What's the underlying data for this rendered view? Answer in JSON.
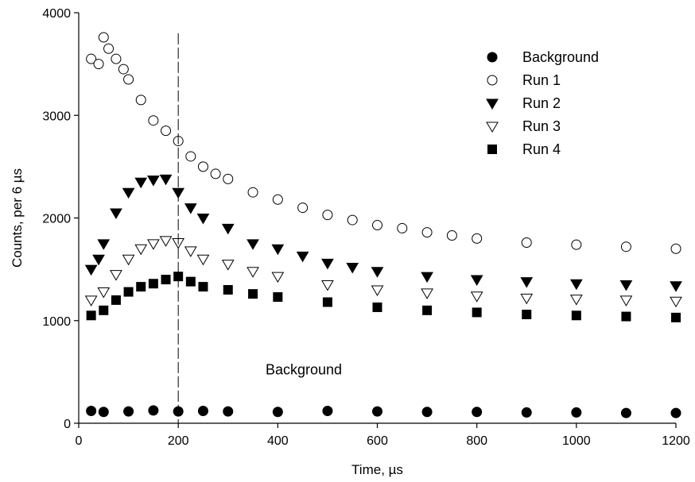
{
  "chart_data": {
    "type": "scatter",
    "title": "",
    "xlabel": "Time, µs",
    "ylabel": "Counts, per 6 µs",
    "xlim": [
      0,
      1200
    ],
    "ylim": [
      0,
      4000
    ],
    "x_ticks": [
      "0",
      "200",
      "400",
      "600",
      "800",
      "1000",
      "1200"
    ],
    "y_ticks": [
      "0",
      "1000",
      "2000",
      "3000",
      "4000"
    ],
    "grid": false,
    "legend_position": "top-right",
    "reference_line": {
      "x": 200,
      "style": "dashed"
    },
    "annotation": {
      "text": "Background",
      "x": 580,
      "y": 260
    },
    "series": [
      {
        "name": "Background",
        "marker": "filled-circle",
        "points": [
          [
            25,
            120
          ],
          [
            50,
            110
          ],
          [
            100,
            115
          ],
          [
            150,
            125
          ],
          [
            200,
            115
          ],
          [
            250,
            120
          ],
          [
            300,
            115
          ],
          [
            400,
            110
          ],
          [
            500,
            120
          ],
          [
            600,
            115
          ],
          [
            700,
            110
          ],
          [
            800,
            110
          ],
          [
            900,
            105
          ],
          [
            1000,
            105
          ],
          [
            1100,
            100
          ],
          [
            1200,
            100
          ]
        ]
      },
      {
        "name": "Run 1",
        "marker": "open-circle",
        "points": [
          [
            25,
            3550
          ],
          [
            40,
            3500
          ],
          [
            50,
            3760
          ],
          [
            60,
            3650
          ],
          [
            75,
            3550
          ],
          [
            90,
            3450
          ],
          [
            100,
            3350
          ],
          [
            125,
            3150
          ],
          [
            150,
            2950
          ],
          [
            175,
            2850
          ],
          [
            200,
            2750
          ],
          [
            225,
            2600
          ],
          [
            250,
            2500
          ],
          [
            275,
            2430
          ],
          [
            300,
            2380
          ],
          [
            350,
            2250
          ],
          [
            400,
            2180
          ],
          [
            450,
            2100
          ],
          [
            500,
            2030
          ],
          [
            550,
            1980
          ],
          [
            600,
            1930
          ],
          [
            650,
            1900
          ],
          [
            700,
            1860
          ],
          [
            750,
            1830
          ],
          [
            800,
            1800
          ],
          [
            900,
            1760
          ],
          [
            1000,
            1740
          ],
          [
            1100,
            1720
          ],
          [
            1200,
            1700
          ]
        ]
      },
      {
        "name": "Run 2",
        "marker": "filled-triangle-down",
        "points": [
          [
            25,
            1500
          ],
          [
            40,
            1600
          ],
          [
            50,
            1750
          ],
          [
            75,
            2050
          ],
          [
            100,
            2250
          ],
          [
            125,
            2350
          ],
          [
            150,
            2370
          ],
          [
            175,
            2380
          ],
          [
            200,
            2250
          ],
          [
            225,
            2100
          ],
          [
            250,
            2000
          ],
          [
            300,
            1900
          ],
          [
            350,
            1750
          ],
          [
            400,
            1700
          ],
          [
            450,
            1630
          ],
          [
            500,
            1560
          ],
          [
            550,
            1520
          ],
          [
            600,
            1480
          ],
          [
            700,
            1430
          ],
          [
            800,
            1400
          ],
          [
            900,
            1380
          ],
          [
            1000,
            1360
          ],
          [
            1100,
            1350
          ],
          [
            1200,
            1340
          ]
        ]
      },
      {
        "name": "Run 3",
        "marker": "open-triangle-down",
        "points": [
          [
            25,
            1200
          ],
          [
            50,
            1280
          ],
          [
            75,
            1450
          ],
          [
            100,
            1600
          ],
          [
            125,
            1700
          ],
          [
            150,
            1750
          ],
          [
            175,
            1780
          ],
          [
            200,
            1760
          ],
          [
            225,
            1680
          ],
          [
            250,
            1600
          ],
          [
            300,
            1550
          ],
          [
            350,
            1480
          ],
          [
            400,
            1430
          ],
          [
            500,
            1350
          ],
          [
            600,
            1300
          ],
          [
            700,
            1270
          ],
          [
            800,
            1240
          ],
          [
            900,
            1220
          ],
          [
            1000,
            1210
          ],
          [
            1100,
            1200
          ],
          [
            1200,
            1190
          ]
        ]
      },
      {
        "name": "Run 4",
        "marker": "filled-square",
        "points": [
          [
            25,
            1050
          ],
          [
            50,
            1100
          ],
          [
            75,
            1200
          ],
          [
            100,
            1280
          ],
          [
            125,
            1330
          ],
          [
            150,
            1360
          ],
          [
            175,
            1400
          ],
          [
            200,
            1430
          ],
          [
            225,
            1380
          ],
          [
            250,
            1330
          ],
          [
            300,
            1300
          ],
          [
            350,
            1260
          ],
          [
            400,
            1230
          ],
          [
            500,
            1180
          ],
          [
            600,
            1130
          ],
          [
            700,
            1100
          ],
          [
            800,
            1080
          ],
          [
            900,
            1060
          ],
          [
            1000,
            1050
          ],
          [
            1100,
            1040
          ],
          [
            1200,
            1030
          ]
        ]
      }
    ]
  }
}
